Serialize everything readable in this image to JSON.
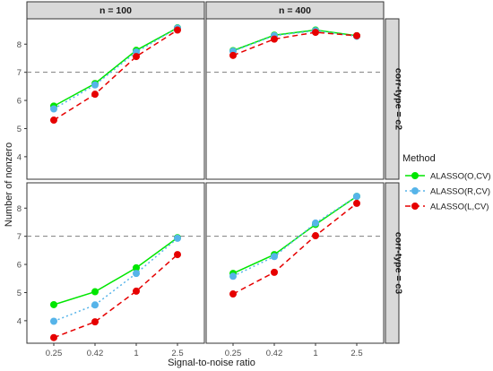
{
  "chart_data": {
    "type": "line",
    "xlabel": "Signal-to-noise ratio",
    "ylabel": "Number of nonzero",
    "x_ticks": [
      "0.25",
      "0.42",
      "1",
      "2.5"
    ],
    "y_ticks": [
      4,
      5,
      6,
      7,
      8
    ],
    "ylim": [
      3.2,
      8.9
    ],
    "reference_line": 7,
    "col_strips": [
      "n = 100",
      "n = 400"
    ],
    "row_strips": [
      "corr-type = c2",
      "corr-type = c3"
    ],
    "legend_title": "Method",
    "series_styles": [
      {
        "name": "ALASSO(O,CV)",
        "color": "#00e600",
        "dash": "solid"
      },
      {
        "name": "ALASSO(R,CV)",
        "color": "#56b4e9",
        "dash": "dotted"
      },
      {
        "name": "ALASSO(L,CV)",
        "color": "#e60000",
        "dash": "dashed"
      }
    ],
    "panels": [
      {
        "row": 0,
        "col": 0,
        "series": [
          {
            "name": "ALASSO(O,CV)",
            "values": [
              5.8,
              6.6,
              7.78,
              8.58
            ]
          },
          {
            "name": "ALASSO(R,CV)",
            "values": [
              5.7,
              6.55,
              7.72,
              8.57
            ]
          },
          {
            "name": "ALASSO(L,CV)",
            "values": [
              5.3,
              6.22,
              7.56,
              8.5
            ]
          }
        ]
      },
      {
        "row": 0,
        "col": 1,
        "series": [
          {
            "name": "ALASSO(O,CV)",
            "values": [
              7.77,
              8.32,
              8.5,
              8.3
            ]
          },
          {
            "name": "ALASSO(R,CV)",
            "values": [
              7.75,
              8.3,
              8.48,
              8.28
            ]
          },
          {
            "name": "ALASSO(L,CV)",
            "values": [
              7.6,
              8.18,
              8.42,
              8.3
            ]
          }
        ]
      },
      {
        "row": 1,
        "col": 0,
        "series": [
          {
            "name": "ALASSO(O,CV)",
            "values": [
              4.57,
              5.03,
              5.88,
              6.95
            ]
          },
          {
            "name": "ALASSO(R,CV)",
            "values": [
              3.98,
              4.56,
              5.68,
              6.93
            ]
          },
          {
            "name": "ALASSO(L,CV)",
            "values": [
              3.4,
              3.96,
              5.05,
              6.35
            ]
          }
        ]
      },
      {
        "row": 1,
        "col": 1,
        "series": [
          {
            "name": "ALASSO(O,CV)",
            "values": [
              5.68,
              6.35,
              7.42,
              8.42
            ]
          },
          {
            "name": "ALASSO(R,CV)",
            "values": [
              5.58,
              6.28,
              7.47,
              8.42
            ]
          },
          {
            "name": "ALASSO(L,CV)",
            "values": [
              4.95,
              5.72,
              7.02,
              8.17
            ]
          }
        ]
      }
    ]
  }
}
